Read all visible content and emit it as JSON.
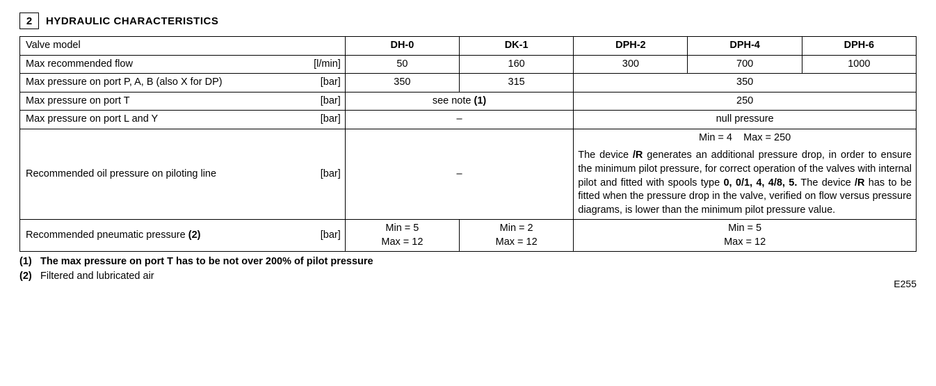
{
  "section": {
    "number": "2",
    "title": "HYDRAULIC CHARACTERISTICS"
  },
  "headers": {
    "valve_model": "Valve model",
    "dh0": "DH-0",
    "dk1": "DK-1",
    "dph2": "DPH-2",
    "dph4": "DPH-4",
    "dph6": "DPH-6"
  },
  "rows": {
    "max_flow": {
      "label": "Max recommended flow",
      "unit": "[l/min]",
      "dh0": "50",
      "dk1": "160",
      "dph2": "300",
      "dph4": "700",
      "dph6": "1000"
    },
    "max_p_pab": {
      "label": "Max pressure on port P, A, B (also X for DP)",
      "unit": "[bar]",
      "dh0": "350",
      "dk1": "315",
      "dph_group": "350"
    },
    "max_p_t": {
      "label": "Max pressure on port T",
      "unit": "[bar]",
      "left_pre": "see note ",
      "left_bold": "(1)",
      "right": "250"
    },
    "max_p_ly": {
      "label": "Max pressure on port L and Y",
      "unit": "[bar]",
      "left": "–",
      "right": "null pressure"
    },
    "rec_oil": {
      "label": "Recommended oil pressure on piloting line",
      "unit": "[bar]",
      "left": "–",
      "top": "Min = 4    Max = 250",
      "p1": "The device ",
      "p1b": "/R",
      "p2": " generates an additional pressure drop, in order to ensure the minimum pilot pressure, for correct operation of the valves with internal pilot and fitted with spools type ",
      "p2b": "0, 0/1, 4, 4/8, 5.",
      "p3": " The device ",
      "p3b": "/R",
      "p4": " has to be fitted when the pressure drop in the valve, verified on flow versus pressure diagrams, is lower than the minimum pilot pressure value."
    },
    "rec_pneu": {
      "label_pre": "Recommended pneumatic pressure ",
      "label_bold": "(2)",
      "unit": "[bar]",
      "c1a": "Min = 5",
      "c1b": "Max = 12",
      "c2a": "Min = 2",
      "c2b": "Max = 12",
      "c3a": "Min = 5",
      "c3b": "Max = 12"
    }
  },
  "notes": {
    "n1_num": "(1)",
    "n1": "The max pressure on port T has to be not over 200% of pilot pressure",
    "n2_num": "(2)",
    "n2": "Filtered and lubricated air"
  },
  "page_code": "E255"
}
